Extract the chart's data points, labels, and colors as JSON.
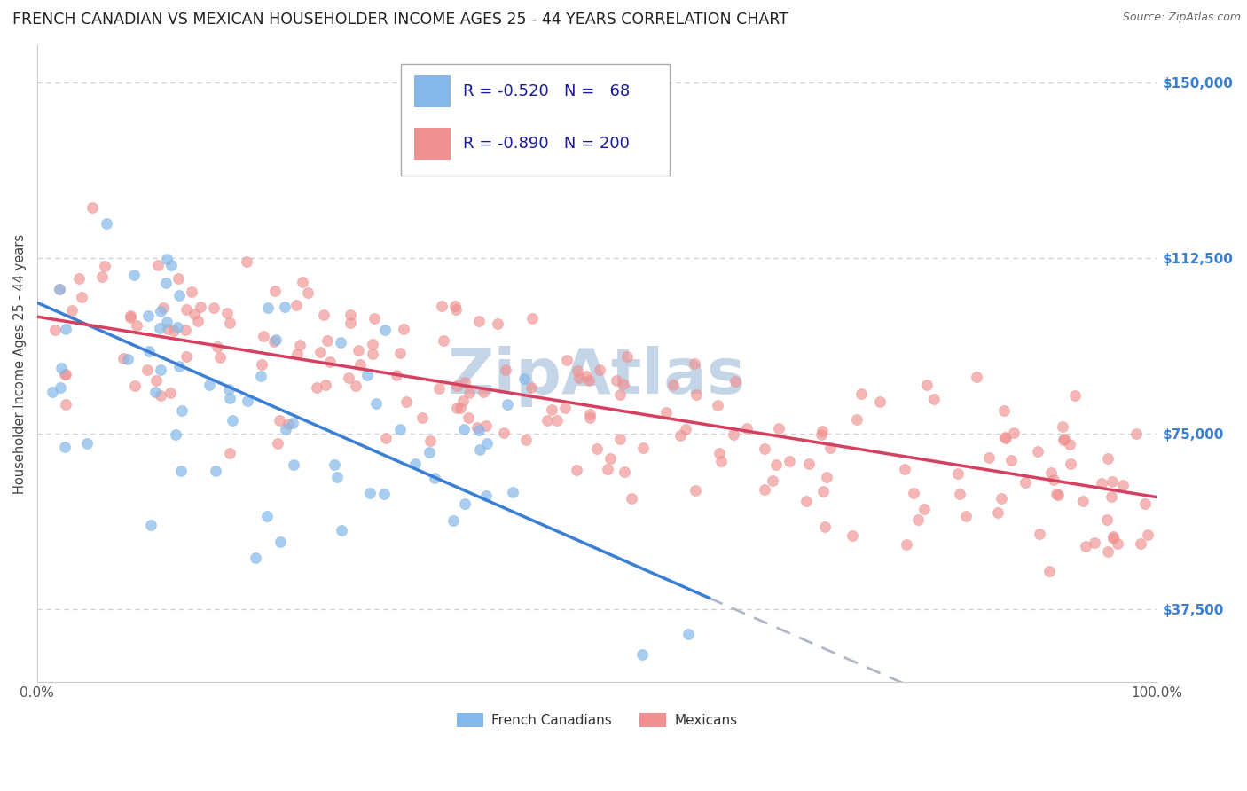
{
  "title": "FRENCH CANADIAN VS MEXICAN HOUSEHOLDER INCOME AGES 25 - 44 YEARS CORRELATION CHART",
  "source": "Source: ZipAtlas.com",
  "ylabel": "Householder Income Ages 25 - 44 years",
  "xlim": [
    0,
    100
  ],
  "ylim": [
    22000,
    158000
  ],
  "yticks": [
    37500,
    75000,
    112500,
    150000
  ],
  "ytick_labels": [
    "$37,500",
    "$75,000",
    "$112,500",
    "$150,000"
  ],
  "xtick_labels": [
    "0.0%",
    "100.0%"
  ],
  "french_R": -0.52,
  "french_N": 68,
  "mexican_R": -0.89,
  "mexican_N": 200,
  "french_line_color": "#3a7fd4",
  "mexican_line_color": "#d64060",
  "dashed_line_color": "#b0b8c8",
  "scatter_blue_color": "#85b8e8",
  "scatter_pink_color": "#f09090",
  "background_color": "#ffffff",
  "grid_color": "#c8cdd8",
  "title_fontsize": 12.5,
  "axis_label_fontsize": 10.5,
  "tick_fontsize": 11,
  "legend_fontsize": 13,
  "watermark_text": "ZipAtlas",
  "watermark_color": "#c5d5e8",
  "watermark_fontsize": 52,
  "ytick_color": "#3a7fd4",
  "legend_text_color": "#1a1a9c"
}
